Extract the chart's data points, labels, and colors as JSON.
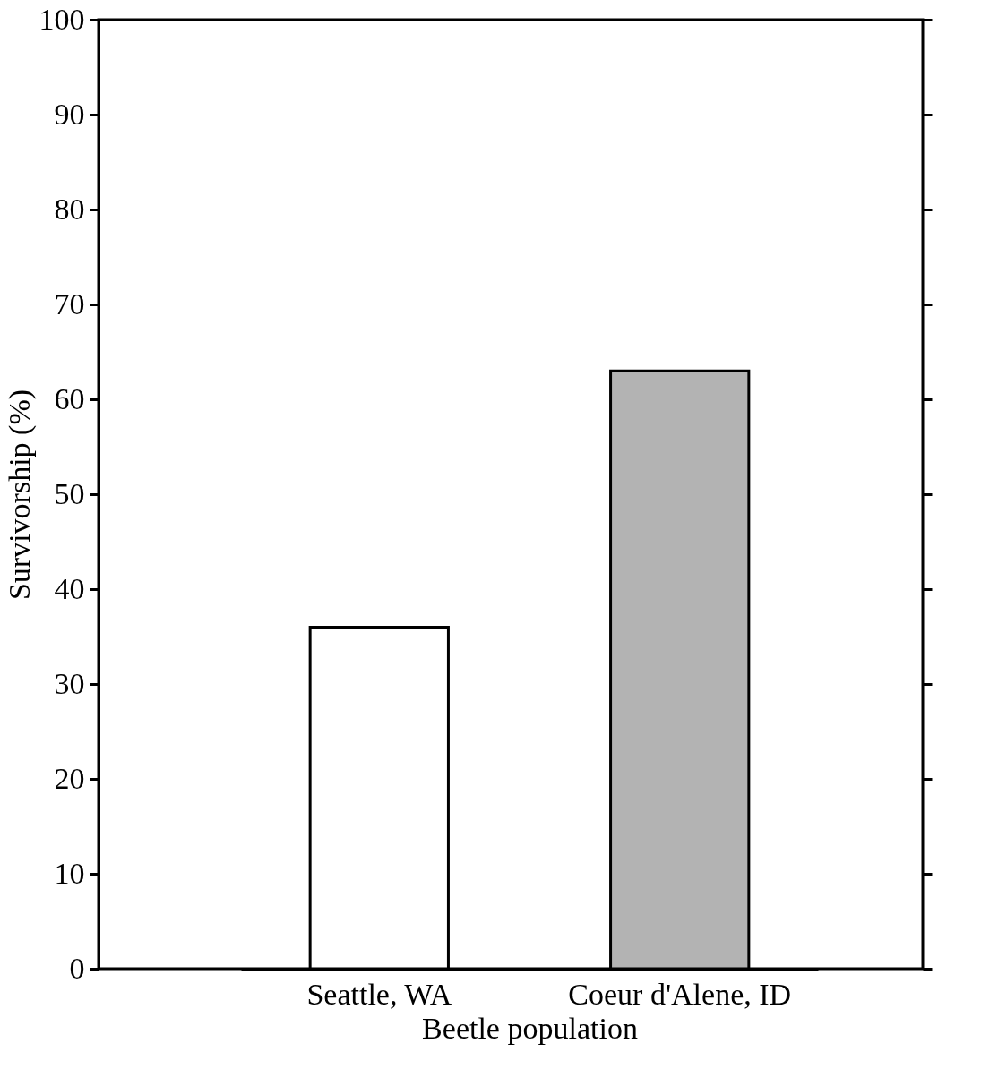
{
  "chart_data": {
    "type": "bar",
    "xlabel": "Beetle population",
    "ylabel": "Survivorship (%)",
    "categories": [
      "Seattle, WA",
      "Coeur d'Alene, ID"
    ],
    "values": [
      36,
      63
    ],
    "colors": [
      "#ffffff",
      "#b3b3b3"
    ],
    "ylim": [
      0,
      100
    ],
    "yticks": [
      0,
      10,
      20,
      30,
      40,
      50,
      60,
      70,
      80,
      90,
      100
    ],
    "grid": false
  }
}
